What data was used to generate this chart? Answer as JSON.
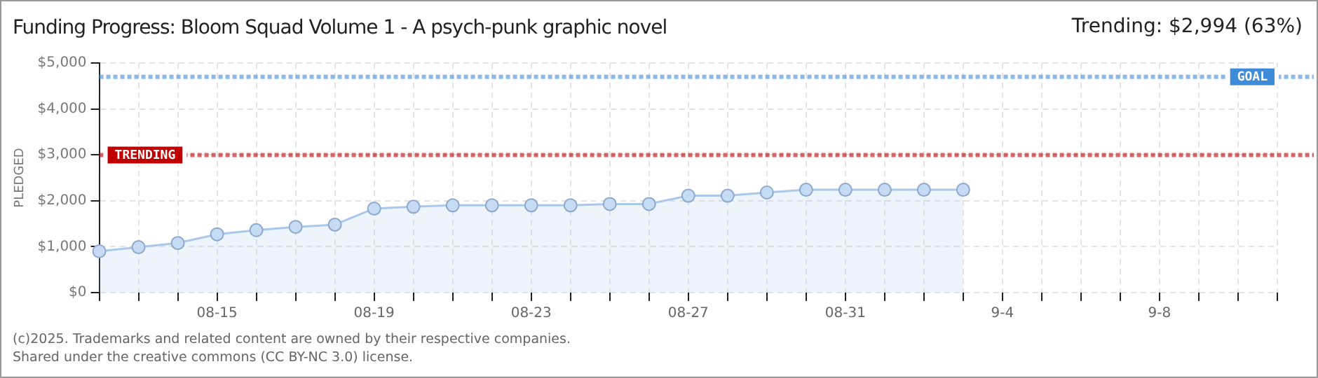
{
  "chart_data": {
    "type": "area",
    "title": "Funding Progress: Bloom Squad Volume 1 - A psych-punk graphic novel",
    "subtitle": "Trending: $2,994 (63%)",
    "ylabel": "PLEDGED",
    "categories": [
      null,
      null,
      null,
      "08-15",
      null,
      null,
      null,
      "08-19",
      null,
      null,
      null,
      "08-23",
      null,
      null,
      null,
      "08-27",
      null,
      null,
      null,
      "08-31",
      null,
      null,
      null,
      "9-4",
      null,
      null,
      null,
      "9-8",
      null,
      null,
      null
    ],
    "series": [
      {
        "color": "#a9c8ec",
        "values": [
          900,
          990,
          1080,
          1270,
          1360,
          1430,
          1480,
          1830,
          1870,
          1900,
          1900,
          1900,
          1900,
          1930,
          1930,
          2110,
          2110,
          2180,
          2240,
          2240,
          2240,
          2240,
          2240,
          null,
          null,
          null,
          null,
          null,
          null,
          null,
          null
        ]
      }
    ],
    "ylim": [
      0,
      5000
    ],
    "yticks": [
      {
        "value": 0,
        "label": "$0"
      },
      {
        "value": 1000,
        "label": "$1,000"
      },
      {
        "value": 2000,
        "label": "$2,000"
      },
      {
        "value": 3000,
        "label": "$3,000"
      },
      {
        "value": 4000,
        "label": "$4,000"
      },
      {
        "value": 5000,
        "label": "$5,000"
      }
    ],
    "ref_lines": [
      {
        "axis": "y",
        "value": 2994,
        "label": "TRENDING",
        "color": "#c00000",
        "line_style": "dotted"
      },
      {
        "axis": "y",
        "value": 4700,
        "label": "GOAL",
        "color": "#3d8bd9",
        "line_style": "dotted"
      }
    ],
    "grid": true,
    "legend": false,
    "marker": "circle",
    "line_style": "solid",
    "annotations": [
      "(c)2025. Trademarks and related content are owned by their respective companies.",
      "Shared under the creative commons (CC BY-NC 3.0) license."
    ]
  }
}
